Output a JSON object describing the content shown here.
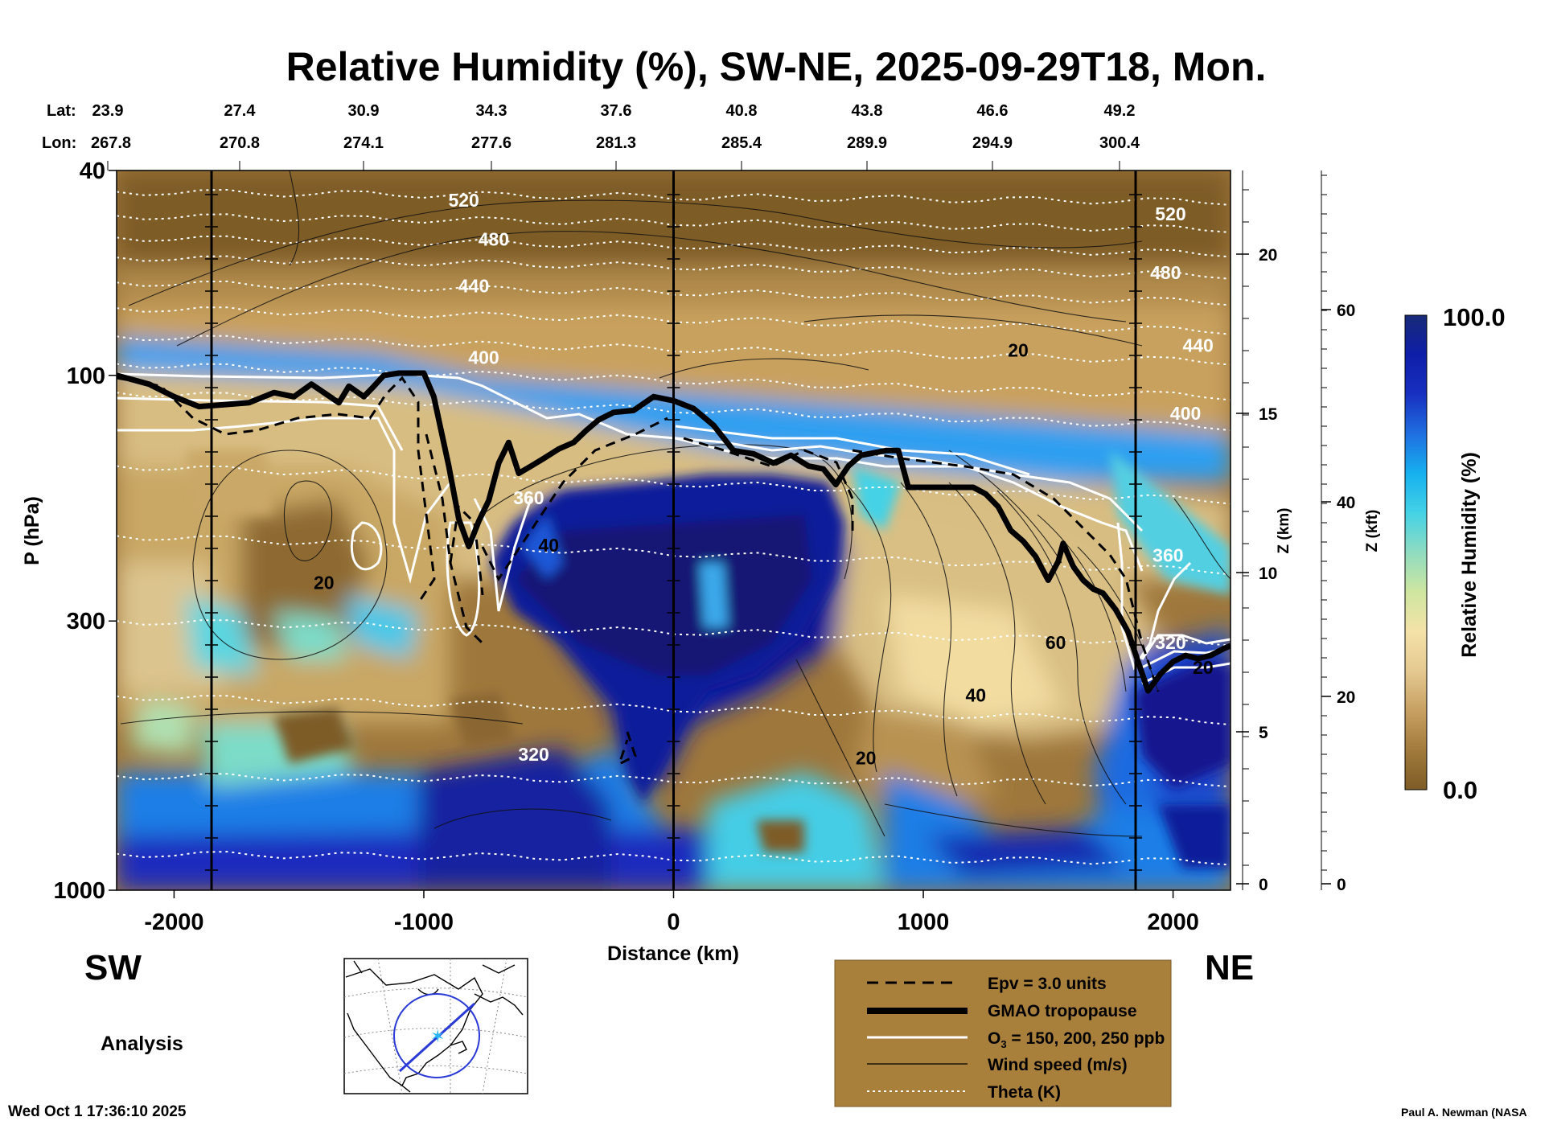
{
  "chart_data": {
    "type": "heatmap",
    "title": "Relative Humidity (%), SW-NE, 2025-09-29T18, Mon.",
    "xlabel": "Distance (km)",
    "ylabel": "P (hPa)",
    "ylabel_right_km": "Z (km)",
    "ylabel_right_kft": "Z (kft)",
    "colorbar_label": "Relative Humidity (%)",
    "colorbar_range": [
      "0.0",
      "100.0"
    ],
    "colorbar_colors": [
      "#7e5c26",
      "#a17a3c",
      "#c7a062",
      "#e4c990",
      "#f4e2a8",
      "#cfe6a0",
      "#8fdcc0",
      "#44d2e6",
      "#16b0ef",
      "#1f6fe0",
      "#1830c0",
      "#0e1ea8",
      "#182a78"
    ],
    "xlim": [
      -2230,
      2230
    ],
    "x_ticks": [
      "-2000",
      "-1000",
      "0",
      "1000",
      "2000"
    ],
    "x_tick_values": [
      -2000,
      -1000,
      0,
      1000,
      2000
    ],
    "p_ticks": [
      "40",
      "100",
      "300",
      "1000"
    ],
    "p_tick_values": [
      40,
      100,
      300,
      1000
    ],
    "z_km_ticks": [
      "0",
      "5",
      "10",
      "15",
      "20"
    ],
    "z_kft_ticks": [
      "0",
      "20",
      "40",
      "60"
    ],
    "lat_label": "Lat:",
    "lon_label": "Lon:",
    "lat": [
      "23.9",
      "27.4",
      "30.9",
      "34.3",
      "37.6",
      "40.8",
      "43.8",
      "46.6",
      "49.2"
    ],
    "lon": [
      "267.8",
      "270.8",
      "274.1",
      "277.6",
      "281.3",
      "285.4",
      "289.9",
      "294.9",
      "300.4"
    ],
    "vertical_lines_km": [
      -1850,
      0,
      1850
    ],
    "theta_labels": [
      {
        "text": "520",
        "x": -840,
        "p": 47
      },
      {
        "text": "480",
        "x": -720,
        "p": 56
      },
      {
        "text": "440",
        "x": -800,
        "p": 69
      },
      {
        "text": "400",
        "x": -760,
        "p": 95
      },
      {
        "text": "360",
        "x": -580,
        "p": 178
      },
      {
        "text": "320",
        "x": -560,
        "p": 560
      },
      {
        "text": "520",
        "x": 1990,
        "p": 50
      },
      {
        "text": "480",
        "x": 1970,
        "p": 65
      },
      {
        "text": "440",
        "x": 2100,
        "p": 90
      },
      {
        "text": "400",
        "x": 2050,
        "p": 122
      },
      {
        "text": "360",
        "x": 1980,
        "p": 230
      },
      {
        "text": "320",
        "x": 1990,
        "p": 340
      }
    ],
    "wind_labels": [
      {
        "text": "20",
        "x": 1380,
        "p": 92
      },
      {
        "text": "40",
        "x": -500,
        "p": 220
      },
      {
        "text": "20",
        "x": -1400,
        "p": 260
      },
      {
        "text": "60",
        "x": 1530,
        "p": 340
      },
      {
        "text": "40",
        "x": 1210,
        "p": 430
      },
      {
        "text": "20",
        "x": 770,
        "p": 570
      },
      {
        "text": "20",
        "x": 2120,
        "p": 380
      }
    ],
    "tropopause": [
      [
        -2230,
        100
      ],
      [
        -2100,
        104
      ],
      [
        -2000,
        110
      ],
      [
        -1900,
        115
      ],
      [
        -1800,
        114
      ],
      [
        -1700,
        113
      ],
      [
        -1600,
        108
      ],
      [
        -1520,
        110
      ],
      [
        -1450,
        104
      ],
      [
        -1400,
        108
      ],
      [
        -1340,
        113
      ],
      [
        -1300,
        105
      ],
      [
        -1240,
        110
      ],
      [
        -1200,
        105
      ],
      [
        -1160,
        100
      ],
      [
        -1100,
        99
      ],
      [
        -1000,
        99
      ],
      [
        -960,
        110
      ],
      [
        -900,
        150
      ],
      [
        -860,
        190
      ],
      [
        -820,
        215
      ],
      [
        -780,
        192
      ],
      [
        -740,
        175
      ],
      [
        -700,
        148
      ],
      [
        -660,
        135
      ],
      [
        -620,
        155
      ],
      [
        -570,
        150
      ],
      [
        -520,
        145
      ],
      [
        -460,
        139
      ],
      [
        -400,
        135
      ],
      [
        -350,
        128
      ],
      [
        -300,
        122
      ],
      [
        -240,
        118
      ],
      [
        -160,
        117
      ],
      [
        -80,
        110
      ],
      [
        0,
        112
      ],
      [
        80,
        116
      ],
      [
        160,
        125
      ],
      [
        240,
        140
      ],
      [
        320,
        142
      ],
      [
        400,
        148
      ],
      [
        470,
        143
      ],
      [
        540,
        150
      ],
      [
        600,
        152
      ],
      [
        650,
        163
      ],
      [
        700,
        150
      ],
      [
        750,
        143
      ],
      [
        850,
        140
      ],
      [
        900,
        140
      ],
      [
        940,
        165
      ],
      [
        1000,
        165
      ],
      [
        1100,
        165
      ],
      [
        1200,
        165
      ],
      [
        1250,
        170
      ],
      [
        1300,
        180
      ],
      [
        1350,
        200
      ],
      [
        1400,
        210
      ],
      [
        1450,
        225
      ],
      [
        1500,
        250
      ],
      [
        1540,
        230
      ],
      [
        1560,
        212
      ],
      [
        1600,
        235
      ],
      [
        1640,
        250
      ],
      [
        1680,
        260
      ],
      [
        1720,
        265
      ],
      [
        1770,
        285
      ],
      [
        1820,
        315
      ],
      [
        1860,
        360
      ],
      [
        1900,
        410
      ],
      [
        1950,
        380
      ],
      [
        2000,
        360
      ],
      [
        2050,
        350
      ],
      [
        2100,
        355
      ],
      [
        2150,
        350
      ],
      [
        2200,
        340
      ],
      [
        2230,
        335
      ]
    ],
    "legend": [
      {
        "label": "Epv = 3.0 units",
        "style": "dashed-black"
      },
      {
        "label": "GMAO tropopause",
        "style": "thick-black"
      },
      {
        "label": "O3 = 150, 200, 250 ppb",
        "style": "white"
      },
      {
        "label": "Wind speed (m/s)",
        "style": "thin-black"
      },
      {
        "label": "Theta (K)",
        "style": "dotted-white"
      }
    ]
  },
  "labels": {
    "sw": "SW",
    "ne": "NE",
    "analysis": "Analysis",
    "timestamp": "Wed Oct  1 17:36:10 2025",
    "credit": "Paul A. Newman (NASA"
  }
}
